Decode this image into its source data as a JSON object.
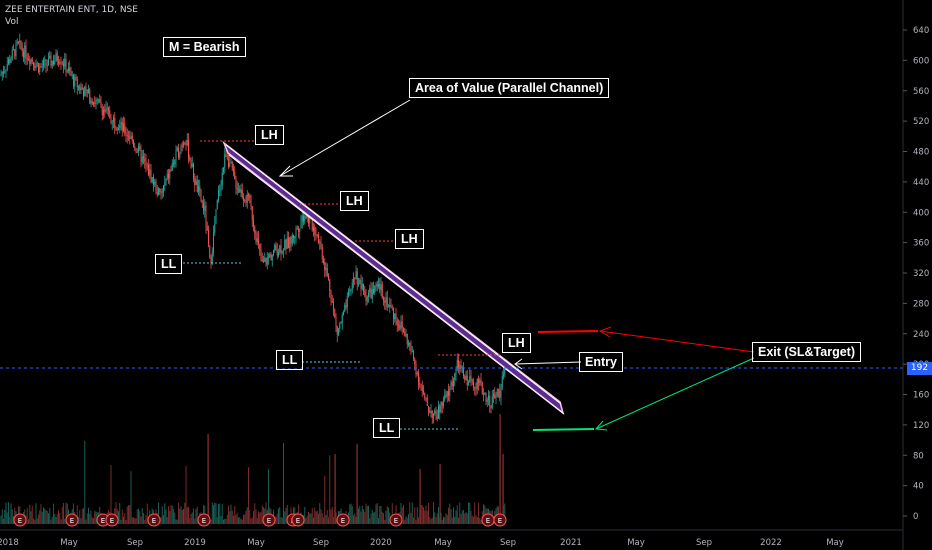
{
  "header": {
    "symbol": "ZEE ENTERTAIN ENT, 1D, NSE",
    "volume_label": "Vol"
  },
  "colors": {
    "bull": "#26a69a",
    "bear": "#ef5350",
    "background": "#000000",
    "price_line": "#2962ff",
    "channel": "#5c2d91",
    "red_arrow": "#ff0000",
    "green_arrow": "#00e676"
  },
  "annotations": {
    "bearish": "M = Bearish",
    "area_of_value": "Area of Value (Parallel Channel)",
    "exit": "Exit (SL&Target)",
    "entry": "Entry",
    "lh": "LH",
    "ll": "LL",
    "earnings_marker": "E"
  },
  "chart_data": {
    "type": "candlestick",
    "y_axis": {
      "min": 0,
      "max": 640,
      "ticks": [
        0,
        40,
        80,
        120,
        160,
        200,
        240,
        280,
        320,
        360,
        400,
        440,
        480,
        520,
        560,
        600,
        640
      ]
    },
    "x_axis_labels": [
      "2018",
      "May",
      "Sep",
      "2019",
      "May",
      "Sep",
      "2020",
      "May",
      "Sep",
      "2021",
      "May",
      "Sep",
      "2022",
      "May"
    ],
    "last_price": 192,
    "last_price_label": "192",
    "swing_points": [
      {
        "type": "LH",
        "price": 493
      },
      {
        "type": "LH",
        "price": 409
      },
      {
        "type": "LH",
        "price": 365
      },
      {
        "type": "LH",
        "price": 213
      },
      {
        "type": "LL",
        "price": 332
      },
      {
        "type": "LL",
        "price": 203
      },
      {
        "type": "LL",
        "price": 115
      }
    ],
    "stop_loss": 240,
    "target": 112
  }
}
